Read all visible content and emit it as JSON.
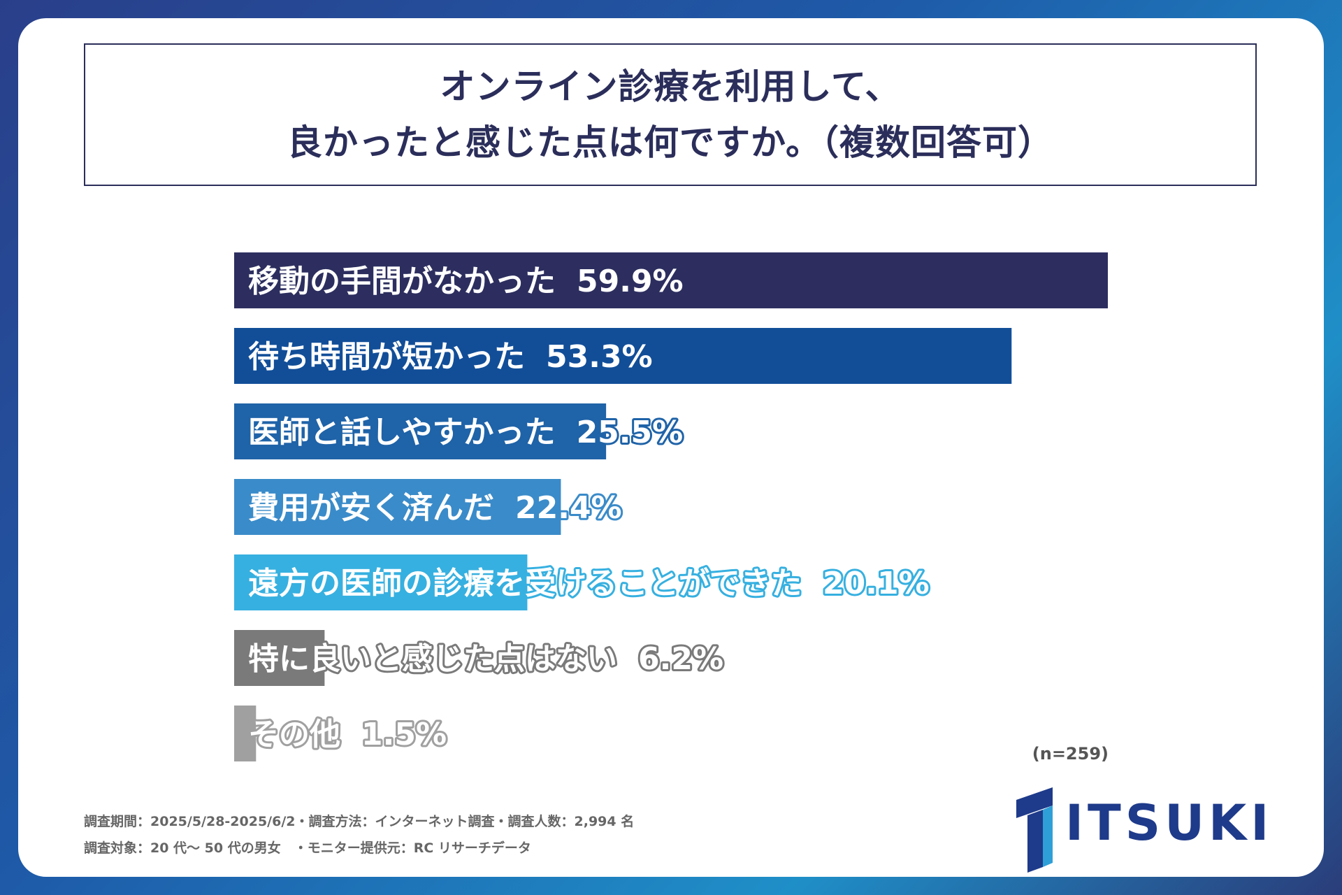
{
  "title": {
    "line1": "オンライン診療を利用して、",
    "line2": "良かったと感じた点は何ですか。（複数回答可）"
  },
  "chart_data": {
    "type": "bar",
    "orientation": "horizontal",
    "categories": [
      "移動の手間がなかった",
      "待ち時間が短かった",
      "医師と話しやすかった",
      "費用が安く済んだ",
      "遠方の医師の診療を受けることができた",
      "特に良いと感じた点はない",
      "その他"
    ],
    "values": [
      59.9,
      53.3,
      25.5,
      22.4,
      20.1,
      6.2,
      1.5
    ],
    "value_labels": [
      "59.9%",
      "53.3%",
      "25.5%",
      "22.4%",
      "20.1%",
      "6.2%",
      "1.5%"
    ],
    "colors": [
      "#2d2e5f",
      "#124e98",
      "#1f63a8",
      "#3a8bc9",
      "#36b0e0",
      "#7a7a7a",
      "#a0a0a0"
    ],
    "xlim": [
      0,
      59.9
    ],
    "grid": false,
    "legend": "none"
  },
  "sample_note": "(n=259)",
  "footnotes": {
    "line1": "調査期間：2025/5/28-2025/6/2・調査方法：インターネット調査・調査人数：2,994 名",
    "line2": "調査対象：20 代〜 50 代の男女　・モニター提供元：RC リサーチデータ"
  },
  "logo": {
    "text": "ITSUKI",
    "color": "#1e3a8a"
  }
}
